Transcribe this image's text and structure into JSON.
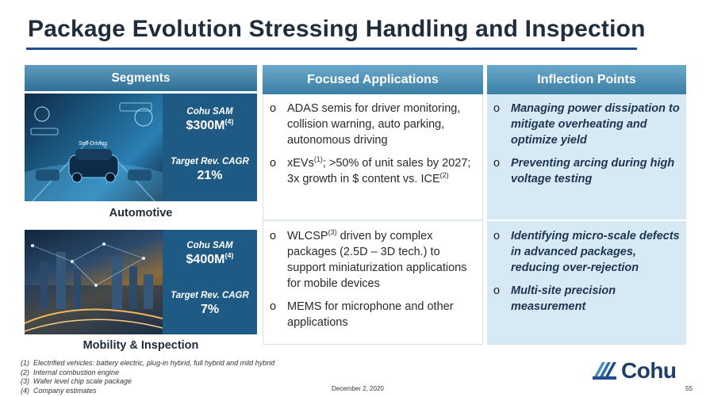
{
  "title": "Package Evolution Stressing Handling and Inspection",
  "headers": {
    "segments": "Segments",
    "focused": "Focused Applications",
    "inflection": "Inflection Points"
  },
  "segments": [
    {
      "name": "Automotive",
      "sam_label": "Cohu SAM",
      "sam_value": "$300M",
      "sam_note": "(4)",
      "cagr_label": "Target Rev. CAGR",
      "cagr_value": "21%",
      "image_text": "Self-Driving"
    },
    {
      "name": "Mobility & Inspection",
      "sam_label": "Cohu SAM",
      "sam_value": "$400M",
      "sam_note": "(4)",
      "cagr_label": "Target Rev. CAGR",
      "cagr_value": "7%"
    }
  ],
  "focused_applications": {
    "automotive": [
      {
        "pre": "ADAS semis for driver monitoring, collision warning, auto parking, autonomous driving"
      },
      {
        "pre": "xEVs",
        "sup1": "(1)",
        "mid": "; >50% of unit sales by 2027; 3x growth in $ content vs. ICE",
        "sup2": "(2)"
      }
    ],
    "mobility": [
      {
        "pre": "WLCSP",
        "sup1": "(3)",
        "mid": " driven by complex packages (2.5D – 3D tech.) to support miniaturization applications for mobile devices"
      },
      {
        "pre": "MEMS for microphone and other applications"
      }
    ]
  },
  "inflection_points": {
    "automotive": [
      "Managing power dissipation to mitigate overheating and optimize yield",
      "Preventing arcing during high voltage testing"
    ],
    "mobility": [
      "Identifying micro-scale defects in advanced packages, reducing over-rejection",
      "Multi-site precision measurement"
    ]
  },
  "bullet_mark": "o",
  "footnotes": [
    {
      "num": "(1)",
      "text": "Electrified vehicles: battery electric, plug-in hybrid, full hybrid and mild hybrid"
    },
    {
      "num": "(2)",
      "text": "Internal combustion engine"
    },
    {
      "num": "(3)",
      "text": "Wafer level chip scale package"
    },
    {
      "num": "(4)",
      "text": "Company estimates"
    }
  ],
  "date": "December 2, 2020",
  "page_number": "55",
  "logo_text": "Cohu",
  "colors": {
    "title": "#1f2d3d",
    "rule": "#1f4e8c",
    "stats_bg": "#1f5a85",
    "inflection_bg": "#d6e9f4"
  }
}
